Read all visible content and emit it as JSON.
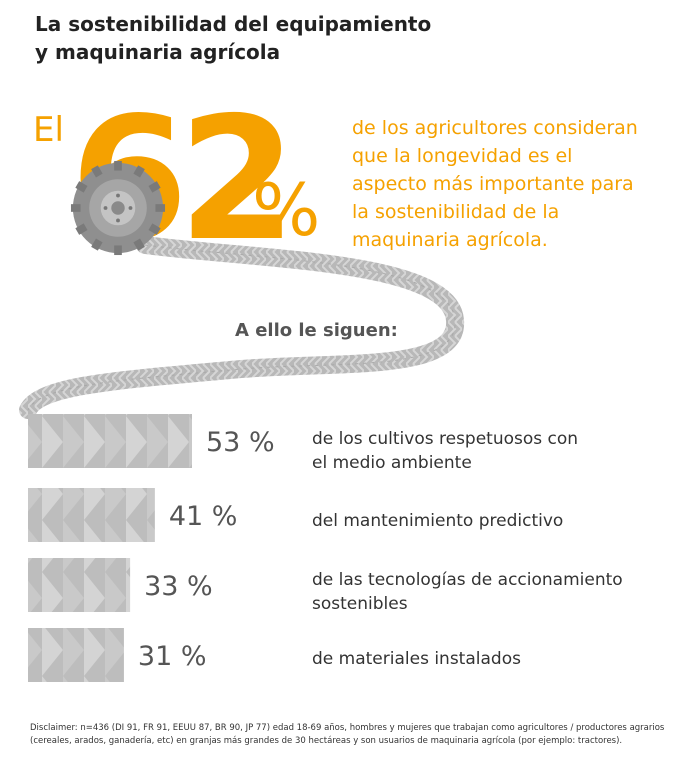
{
  "title_lines": [
    "La sostenibilidad del equipamiento",
    "y maquinaria agrícola"
  ],
  "headline": {
    "prefix": "El",
    "number": "62",
    "percent_sign": "%",
    "text_lines": [
      "de los agricultores consideran",
      "que la longevidad es el",
      "aspecto más importante para",
      "la sostenibilidad de la",
      "maquinaria agrícola."
    ]
  },
  "subheading": "A ello le siguen:",
  "chart_data": {
    "type": "bar",
    "orientation": "horizontal",
    "categories": [
      [
        "de los cultivos respetuosos con",
        "el medio ambiente"
      ],
      [
        "del mantenimiento predictivo"
      ],
      [
        "de las tecnologías de accionamiento",
        "sostenibles"
      ],
      [
        "de materiales instalados"
      ]
    ],
    "values": [
      53,
      41,
      33,
      31
    ],
    "value_labels": [
      "53 %",
      "41 %",
      "33 %",
      "31 %"
    ]
  },
  "disclaimer": "Disclaimer: n=436 (DI 91, FR 91, EEUU 87, BR 90, JP 77) edad 18-69 años, hombres y mujeres que trabajan como agricultores / productores agrarios (cereales, arados, ganadería, etc) en granjas más grandes de 30 hectáreas y son usuarios de maquinaria agrícola (por ejemplo: tractores).",
  "colors": {
    "accent": "#f5a100",
    "bar": "#bdbdbd",
    "bar_pattern": "#d3d3d3",
    "tire": "#9e9e9e",
    "text": "#333333"
  },
  "icons": {
    "tire": "tractor-tire-icon",
    "track": "tire-track-ribbon"
  }
}
